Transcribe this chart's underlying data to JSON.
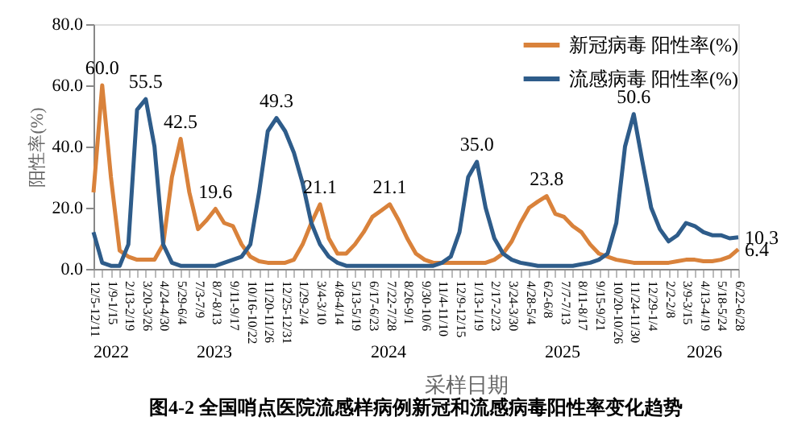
{
  "chart_data": {
    "type": "line",
    "title": "图4-2 全国哨点医院流感样病例新冠和流感病毒阳性率变化趋势",
    "xlabel": "采样日期",
    "ylabel": "阳性率(%)",
    "categories": [
      "12/5-12/11",
      null,
      "1/9-1/15",
      null,
      "2/13-2/19",
      null,
      "3/20-3/26",
      null,
      "4/24-4/30",
      null,
      "5/29-6/4",
      null,
      "7/3-7/9",
      null,
      "8/7-8/13",
      null,
      "9/11-9/17",
      null,
      "10/16-10/22",
      null,
      "11/20-11/26",
      null,
      "12/25-12/31",
      null,
      "1/29-2/4",
      null,
      "3/4-3/10",
      null,
      "4/8-4/14",
      null,
      "5/13-5/19",
      null,
      "6/17-6/23",
      null,
      "7/22-7/28",
      null,
      "8/26-9/1",
      null,
      "9/30-10/6",
      null,
      "11/4-11/10",
      null,
      "12/9-12/15",
      null,
      "1/13-1/19",
      null,
      "2/17-2/23",
      null,
      "3/24-3/30",
      null,
      "4/28-5/4",
      null,
      "6/2-6/8",
      null,
      "7/7-7/13",
      null,
      "8/11-8/17",
      null,
      "9/15-9/21",
      null,
      "10/20-10/26",
      null,
      "11/24-11/30",
      null,
      "12/29-1/4",
      null,
      "2/2-2/8",
      null,
      "3/9-3/15",
      null,
      "4/13-4/19",
      null,
      "5/18-5/24",
      null,
      "6/22-6/28"
    ],
    "series": [
      {
        "name": "新冠病毒 阳性率(%)",
        "color": "#d9823b",
        "values": [
          25,
          60.0,
          30,
          6,
          4,
          3,
          3,
          3,
          8,
          30,
          42.5,
          25,
          13,
          16,
          19.6,
          15,
          14,
          8,
          4,
          2.5,
          2,
          2,
          2,
          3,
          8,
          15,
          21.1,
          10,
          5,
          5,
          8,
          12,
          17,
          19,
          21.1,
          16,
          10,
          5,
          3,
          2,
          2,
          2,
          2,
          2,
          2,
          2,
          3,
          5,
          9,
          15,
          20,
          22,
          23.8,
          18,
          17,
          14,
          12,
          8,
          5,
          4,
          3,
          2.5,
          2,
          2,
          2,
          2,
          2,
          2.5,
          3,
          3,
          2.5,
          2.5,
          3,
          4,
          6.4
        ],
        "value_labels": [
          null,
          "60.0",
          null,
          null,
          null,
          null,
          null,
          null,
          null,
          null,
          "42.5",
          null,
          null,
          null,
          "19.6",
          null,
          null,
          null,
          null,
          null,
          null,
          null,
          null,
          null,
          null,
          null,
          "21.1",
          null,
          null,
          null,
          null,
          null,
          null,
          null,
          "21.1",
          null,
          null,
          null,
          null,
          null,
          null,
          null,
          null,
          null,
          null,
          null,
          null,
          null,
          null,
          null,
          null,
          null,
          "23.8",
          null,
          null,
          null,
          null,
          null,
          null,
          null,
          null,
          null,
          null,
          null,
          null,
          null,
          null,
          null,
          null,
          null,
          null,
          null,
          null,
          null,
          "6.4"
        ]
      },
      {
        "name": "流感病毒 阳性率(%)",
        "color": "#2e5c8a",
        "values": [
          12,
          2,
          1,
          1,
          8,
          52,
          55.5,
          40,
          8,
          2,
          1,
          1,
          1,
          1,
          1,
          2,
          3,
          4,
          8,
          25,
          45,
          49.3,
          45,
          38,
          28,
          15,
          8,
          4,
          2,
          1,
          1,
          1,
          1,
          1,
          1,
          1,
          1,
          1,
          1,
          1,
          2,
          4,
          12,
          30,
          35.0,
          20,
          10,
          5,
          3,
          2,
          1.5,
          1,
          1,
          1,
          1,
          1,
          1.5,
          2,
          3,
          5,
          15,
          40,
          50.6,
          35,
          20,
          13,
          9,
          11,
          15,
          14,
          12,
          11,
          11,
          10,
          10.3
        ],
        "value_labels": [
          null,
          null,
          null,
          null,
          null,
          null,
          "55.5",
          null,
          null,
          null,
          null,
          null,
          null,
          null,
          null,
          null,
          null,
          null,
          null,
          null,
          null,
          "49.3",
          null,
          null,
          null,
          null,
          null,
          null,
          null,
          null,
          null,
          null,
          null,
          null,
          null,
          null,
          null,
          null,
          null,
          null,
          null,
          null,
          null,
          null,
          "35.0",
          null,
          null,
          null,
          null,
          null,
          null,
          null,
          null,
          null,
          null,
          null,
          null,
          null,
          null,
          null,
          null,
          null,
          "50.6",
          null,
          null,
          null,
          null,
          null,
          null,
          null,
          null,
          null,
          null,
          null,
          "10.3"
        ]
      }
    ],
    "ylim": [
      0,
      80
    ],
    "yticks": [
      {
        "value": 0,
        "label": "0.0"
      },
      {
        "value": 20,
        "label": "20.0"
      },
      {
        "value": 40,
        "label": "40.0"
      },
      {
        "value": 60,
        "label": "60.0"
      },
      {
        "value": 80,
        "label": "80.0"
      }
    ],
    "annotations": [
      "2022",
      "2023",
      "2024",
      "2025",
      "2026"
    ],
    "legend": "top right",
    "grid": false,
    "marker": "none",
    "line_style": "solid"
  }
}
